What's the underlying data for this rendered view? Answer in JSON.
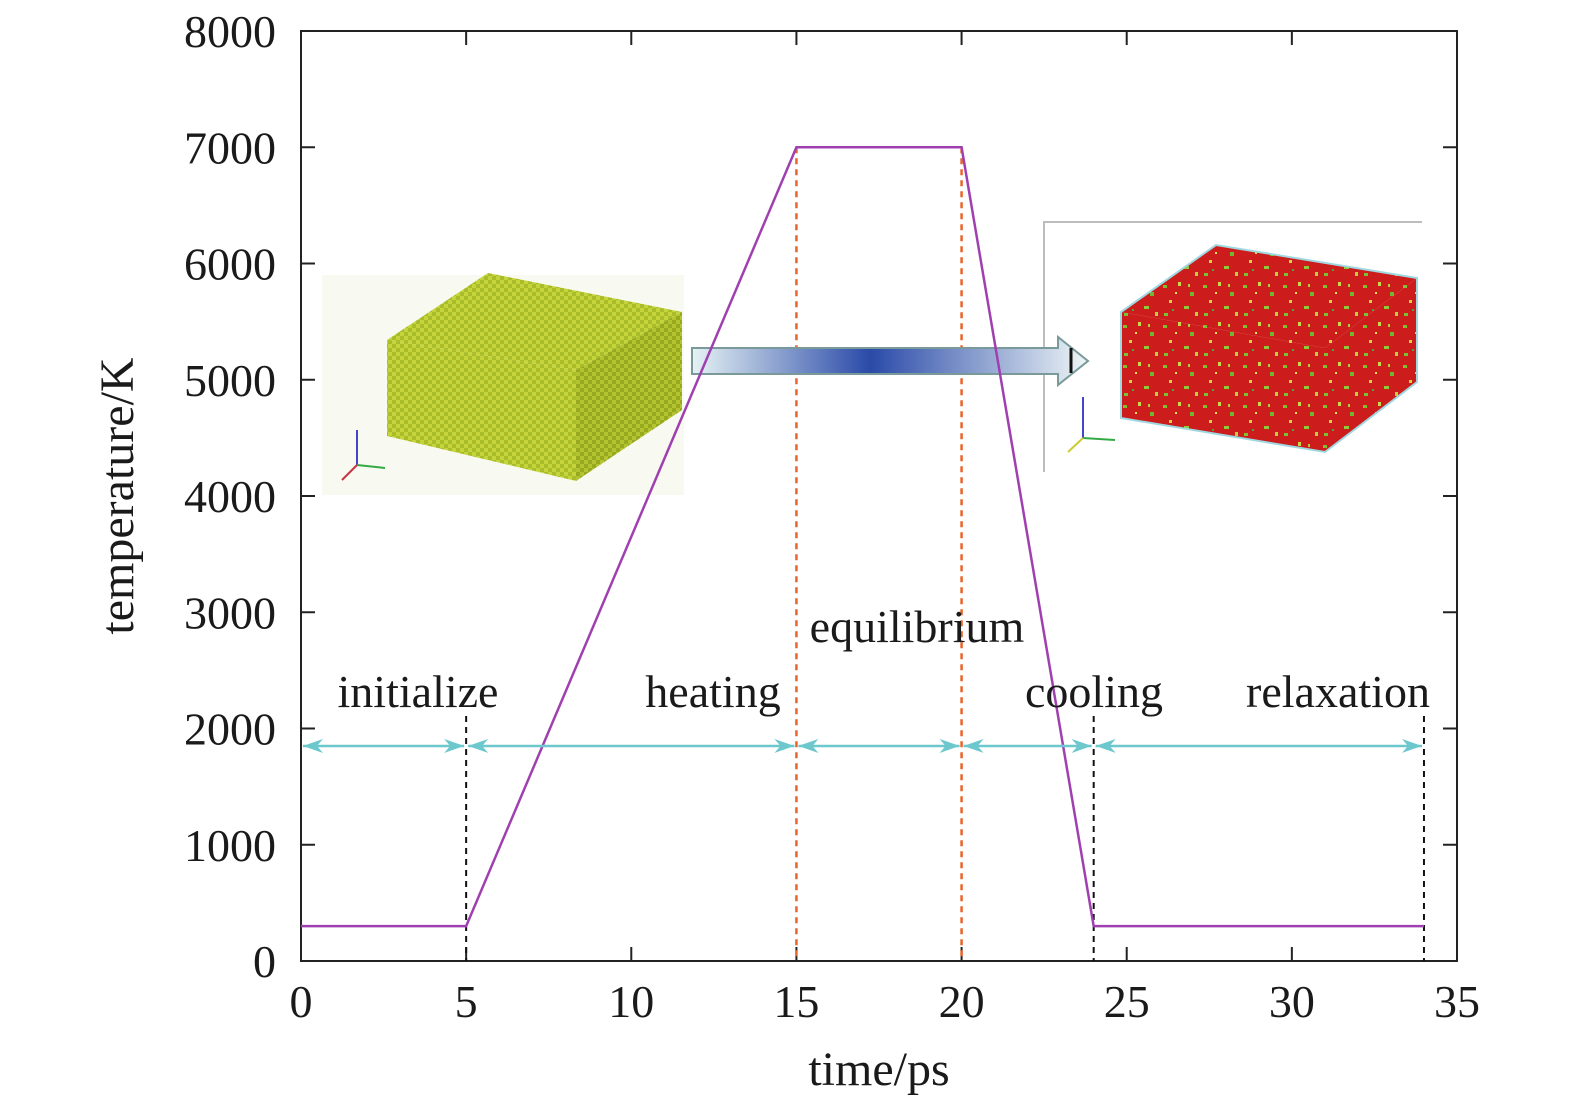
{
  "chart_data": {
    "type": "line",
    "xlabel": "time/ps",
    "ylabel": "temperature/K",
    "xlim": [
      0,
      35
    ],
    "ylim": [
      0,
      8000
    ],
    "x_ticks": [
      "0",
      "5",
      "10",
      "15",
      "20",
      "25",
      "30",
      "35"
    ],
    "y_ticks": [
      "0",
      "1000",
      "2000",
      "3000",
      "4000",
      "5000",
      "6000",
      "7000",
      "8000"
    ],
    "grid": false,
    "legend": "none",
    "series": [
      {
        "color": "#a040b0",
        "x": [
          0,
          5,
          15,
          20,
          24,
          34
        ],
        "y": [
          300,
          300,
          7000,
          7000,
          300,
          300
        ]
      }
    ],
    "phase_boundaries": [
      {
        "x": 5,
        "style": "black-dashed"
      },
      {
        "x": 15,
        "style": "orange-dashed"
      },
      {
        "x": 20,
        "style": "orange-dashed"
      },
      {
        "x": 24,
        "style": "black-dashed"
      },
      {
        "x": 34,
        "style": "black-dashed"
      }
    ],
    "phases": [
      {
        "label": "initialize",
        "x_start": 0,
        "x_end": 5
      },
      {
        "label": "heating",
        "x_start": 5,
        "x_end": 15
      },
      {
        "label": "equilibrium",
        "x_start": 15,
        "x_end": 20
      },
      {
        "label": "cooling",
        "x_start": 20,
        "x_end": 24
      },
      {
        "label": "relaxation",
        "x_start": 24,
        "x_end": 34
      }
    ],
    "phase_arrow_y": 1850,
    "colors": {
      "line": "#a040b0",
      "phase_arrows": "#6cc8cc",
      "orange_dash": "#e8642a",
      "black_dash": "#111111"
    },
    "insets": [
      {
        "name": "initial-crystal-box",
        "faces": [
          "#c4d43a",
          "#aabd28",
          "#93a818"
        ]
      },
      {
        "name": "final-quenched-box",
        "faces": [
          "#cc1a1a",
          "#b81414",
          "#a51010"
        ]
      }
    ]
  }
}
